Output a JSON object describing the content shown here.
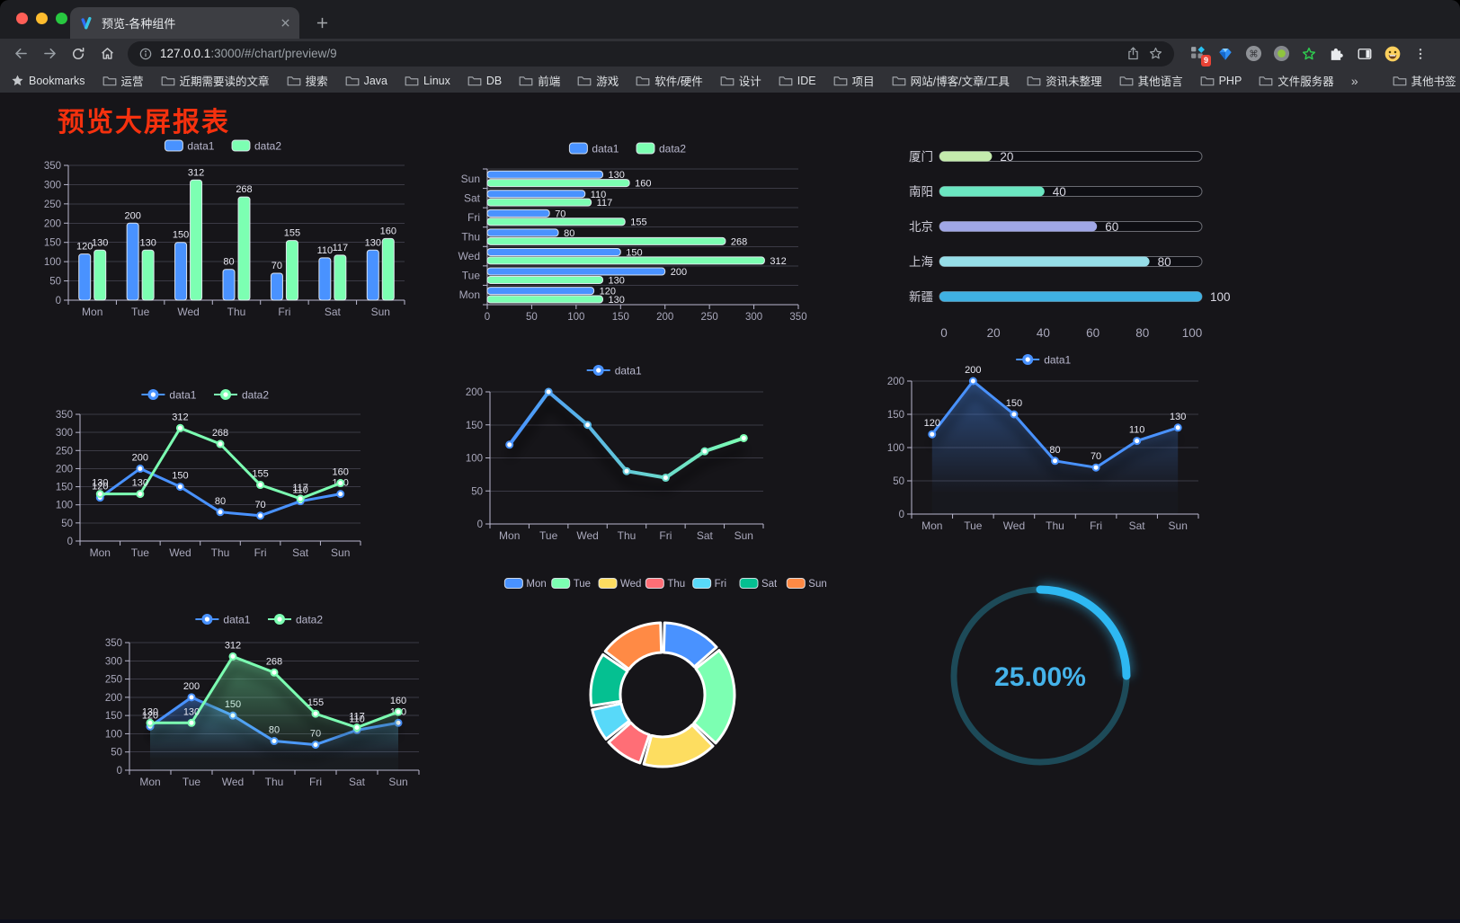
{
  "browser": {
    "tab_title": "预览-各种组件",
    "url_host": "127.0.0.1",
    "url_rest": ":3000/#/chart/preview/9",
    "extension_badge": "9",
    "cmd_glyph": "⌘",
    "bookmarks_label": "Bookmarks",
    "bookmarks": [
      "运营",
      "近期需要读的文章",
      "搜索",
      "Java",
      "Linux",
      "DB",
      "前端",
      "游戏",
      "软件/硬件",
      "设计",
      "IDE",
      "项目",
      "网站/博客/文章/工具",
      "资讯未整理",
      "其他语言",
      "PHP",
      "文件服务器"
    ],
    "bookmarks_overflow": "»",
    "other_bookmarks": "其他书签"
  },
  "page": {
    "title": "预览大屏报表"
  },
  "theme": {
    "blue": "#4992ff",
    "green": "#7cffb2",
    "yellow": "#fddd60",
    "red": "#ff6e76",
    "cyan": "#58d9f9",
    "teal": "#05c091",
    "orange": "#ff8a45",
    "axis": "#B9B8CE",
    "axis_text": "#A9A8BB",
    "grid": "#3b3a45",
    "label": "#E8E8F2"
  },
  "chart_data": [
    {
      "id": "bar",
      "type": "bar",
      "legend": [
        "data1",
        "data2"
      ],
      "categories": [
        "Mon",
        "Tue",
        "Wed",
        "Thu",
        "Fri",
        "Sat",
        "Sun"
      ],
      "series": [
        {
          "name": "data1",
          "color": "#4992ff",
          "values": [
            120,
            200,
            150,
            80,
            70,
            110,
            130
          ]
        },
        {
          "name": "data2",
          "color": "#7cffb2",
          "values": [
            130,
            130,
            312,
            268,
            155,
            117,
            160
          ]
        }
      ],
      "ylim": [
        0,
        350
      ],
      "ytick": 50,
      "labels": true
    },
    {
      "id": "hbar",
      "type": "hbar",
      "legend": [
        "data1",
        "data2"
      ],
      "categories": [
        "Mon",
        "Tue",
        "Wed",
        "Thu",
        "Fri",
        "Sat",
        "Sun"
      ],
      "display_order_top_to_bottom": [
        "Sun",
        "Sat",
        "Fri",
        "Thu",
        "Wed",
        "Tue",
        "Mon"
      ],
      "series": [
        {
          "name": "data1",
          "color": "#4992ff",
          "values": [
            120,
            200,
            150,
            80,
            70,
            110,
            130
          ]
        },
        {
          "name": "data2",
          "color": "#7cffb2",
          "values": [
            130,
            130,
            312,
            268,
            155,
            117,
            160
          ]
        }
      ],
      "xlim": [
        0,
        350
      ],
      "xtick": 50,
      "labels": true
    },
    {
      "id": "progress",
      "type": "progress",
      "max": 100,
      "items": [
        {
          "label": "厦门",
          "value": 20,
          "color": "#c4ebad"
        },
        {
          "label": "南阳",
          "value": 40,
          "color": "#6be6c1"
        },
        {
          "label": "北京",
          "value": 60,
          "color": "#a0a7e6"
        },
        {
          "label": "上海",
          "value": 80,
          "color": "#96dee8"
        },
        {
          "label": "新疆",
          "value": 100,
          "color": "#3fb1e3"
        }
      ],
      "xticks": [
        0,
        20,
        40,
        60,
        80,
        100
      ]
    },
    {
      "id": "line2",
      "type": "line",
      "legend": [
        "data1",
        "data2"
      ],
      "categories": [
        "Mon",
        "Tue",
        "Wed",
        "Thu",
        "Fri",
        "Sat",
        "Sun"
      ],
      "series": [
        {
          "name": "data1",
          "color": "#4992ff",
          "values": [
            120,
            200,
            150,
            80,
            70,
            110,
            130
          ]
        },
        {
          "name": "data2",
          "color": "#7cffb2",
          "values": [
            130,
            130,
            312,
            268,
            155,
            117,
            160
          ]
        }
      ],
      "ylim": [
        0,
        350
      ],
      "ytick": 50,
      "labels": true
    },
    {
      "id": "gradline",
      "type": "line",
      "legend": [
        "data1"
      ],
      "categories": [
        "Mon",
        "Tue",
        "Wed",
        "Thu",
        "Fri",
        "Sat",
        "Sun"
      ],
      "series": [
        {
          "name": "data1",
          "color": "#4992ff",
          "color2": "#7cffb2",
          "values": [
            120,
            200,
            150,
            80,
            70,
            110,
            130
          ]
        }
      ],
      "ylim": [
        0,
        200
      ],
      "ytick": 50,
      "labels": false,
      "gradient": true,
      "shadow": true
    },
    {
      "id": "area1",
      "type": "line",
      "legend": [
        "data1"
      ],
      "categories": [
        "Mon",
        "Tue",
        "Wed",
        "Thu",
        "Fri",
        "Sat",
        "Sun"
      ],
      "series": [
        {
          "name": "data1",
          "color": "#4992ff",
          "values": [
            120,
            200,
            150,
            80,
            70,
            110,
            130
          ]
        }
      ],
      "ylim": [
        0,
        200
      ],
      "ytick": 50,
      "labels": true,
      "area": true,
      "shadow": true
    },
    {
      "id": "area2",
      "type": "line",
      "legend": [
        "data1",
        "data2"
      ],
      "categories": [
        "Mon",
        "Tue",
        "Wed",
        "Thu",
        "Fri",
        "Sat",
        "Sun"
      ],
      "series": [
        {
          "name": "data1",
          "color": "#4992ff",
          "values": [
            120,
            200,
            150,
            80,
            70,
            110,
            130
          ]
        },
        {
          "name": "data2",
          "color": "#7cffb2",
          "values": [
            130,
            130,
            312,
            268,
            155,
            117,
            160
          ]
        }
      ],
      "ylim": [
        0,
        350
      ],
      "ytick": 50,
      "labels": true,
      "area": true,
      "shadow": true
    },
    {
      "id": "donut",
      "type": "pie",
      "inner_radius": 47,
      "outer_radius": 80,
      "start_angle_deg": 0,
      "items": [
        {
          "name": "Mon",
          "value": 120,
          "color": "#4992ff"
        },
        {
          "name": "Tue",
          "value": 200,
          "color": "#7cffb2"
        },
        {
          "name": "Wed",
          "value": 150,
          "color": "#fddd60"
        },
        {
          "name": "Thu",
          "value": 80,
          "color": "#ff6e76"
        },
        {
          "name": "Fri",
          "value": 70,
          "color": "#58d9f9"
        },
        {
          "name": "Sat",
          "value": 110,
          "color": "#05c091"
        },
        {
          "name": "Sun",
          "value": 130,
          "color": "#ff8a45"
        }
      ]
    },
    {
      "id": "gauge",
      "type": "gauge",
      "value": 25,
      "label": "25.00%",
      "color": "#2eb8f2",
      "track": "#1d4a58",
      "text_color": "#45b3ea"
    }
  ]
}
